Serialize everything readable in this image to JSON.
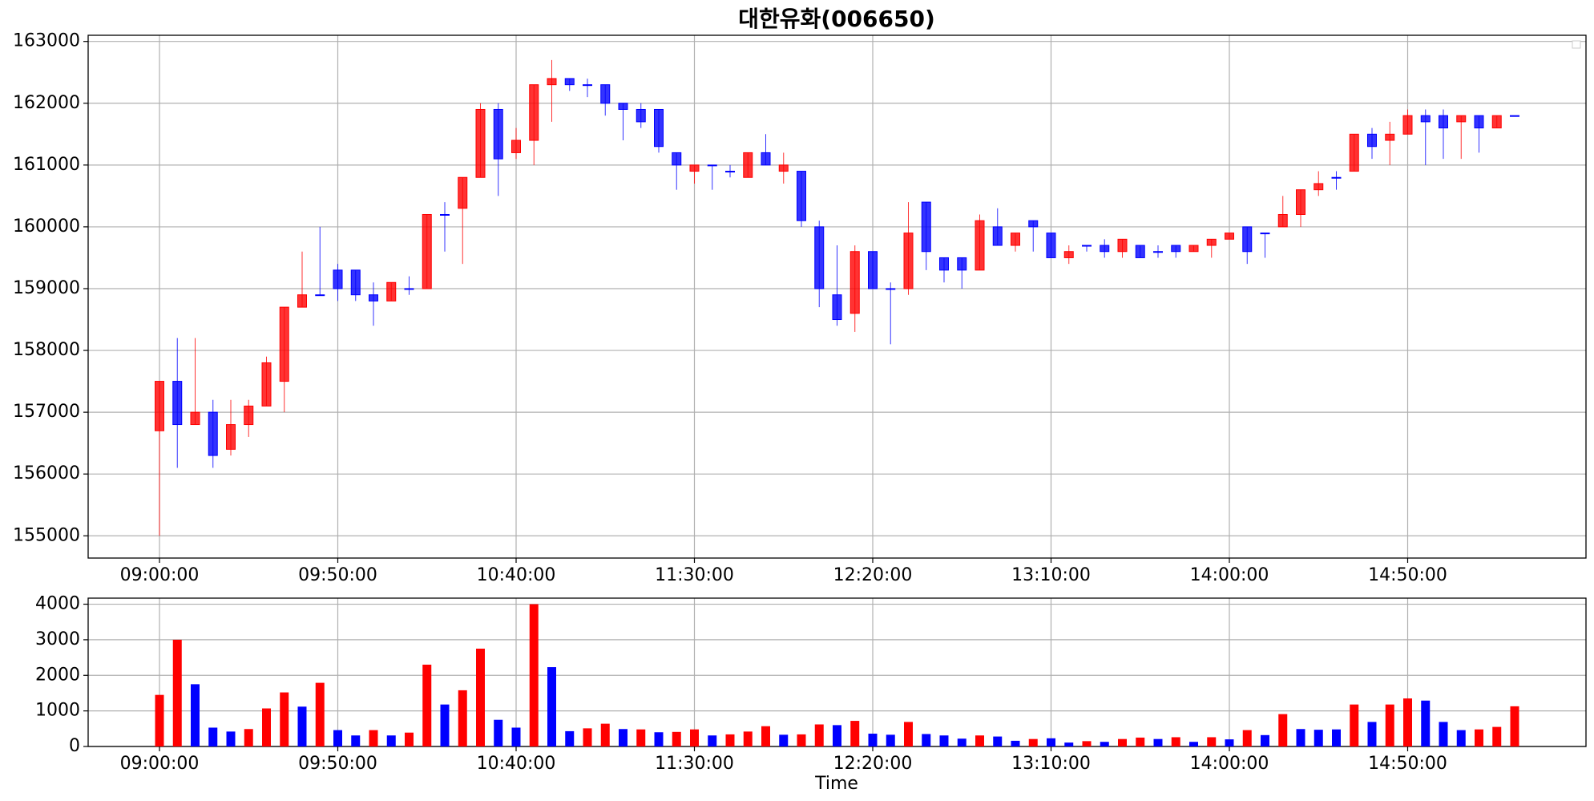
{
  "chart_data": [
    {
      "type": "candlestick",
      "title": "대한유화(006650)",
      "x": [
        "09:00:00",
        "09:05:00",
        "09:10:00",
        "09:15:00",
        "09:20:00",
        "09:25:00",
        "09:30:00",
        "09:35:00",
        "09:40:00",
        "09:45:00",
        "09:50:00",
        "09:55:00",
        "10:00:00",
        "10:05:00",
        "10:10:00",
        "10:15:00",
        "10:20:00",
        "10:25:00",
        "10:30:00",
        "10:35:00",
        "10:40:00",
        "10:45:00",
        "10:50:00",
        "10:55:00",
        "11:00:00",
        "11:05:00",
        "11:10:00",
        "11:15:00",
        "11:20:00",
        "11:25:00",
        "11:30:00",
        "11:35:00",
        "11:40:00",
        "11:45:00",
        "11:50:00",
        "11:55:00",
        "12:00:00",
        "12:05:00",
        "12:10:00",
        "12:15:00",
        "12:20:00",
        "12:25:00",
        "12:30:00",
        "12:35:00",
        "12:40:00",
        "12:45:00",
        "12:50:00",
        "12:55:00",
        "13:00:00",
        "13:05:00",
        "13:10:00",
        "13:15:00",
        "13:20:00",
        "13:25:00",
        "13:30:00",
        "13:35:00",
        "13:40:00",
        "13:45:00",
        "13:50:00",
        "13:55:00",
        "14:00:00",
        "14:05:00",
        "14:10:00",
        "14:15:00",
        "14:20:00",
        "14:25:00",
        "14:30:00",
        "14:35:00",
        "14:40:00",
        "14:45:00",
        "14:50:00",
        "14:55:00",
        "15:00:00",
        "15:05:00",
        "15:10:00",
        "15:15:00",
        "15:20:00"
      ],
      "open": [
        156700,
        157500,
        156800,
        157000,
        156400,
        156800,
        157100,
        157500,
        158700,
        158900,
        159300,
        159300,
        158900,
        158800,
        159000,
        159000,
        160200,
        160300,
        160800,
        161900,
        161200,
        161400,
        162300,
        162400,
        162300,
        162300,
        162000,
        161900,
        161900,
        161200,
        160900,
        161000,
        160900,
        160800,
        161200,
        160900,
        160900,
        160000,
        158900,
        158600,
        159600,
        159000,
        159000,
        160400,
        159500,
        159500,
        159300,
        160000,
        159700,
        160100,
        159900,
        159500,
        159700,
        159700,
        159600,
        159700,
        159600,
        159700,
        159600,
        159700,
        159800,
        160000,
        159900,
        160000,
        160200,
        160600,
        160800,
        160900,
        161500,
        161400,
        161500,
        161800,
        161800,
        161700,
        161800,
        161600,
        161800
      ],
      "high": [
        157500,
        158200,
        158200,
        157200,
        157200,
        157200,
        157900,
        158700,
        159600,
        160000,
        159400,
        159300,
        159100,
        159100,
        159200,
        160200,
        160400,
        160800,
        162000,
        162000,
        161600,
        162300,
        162700,
        162400,
        162400,
        162300,
        162000,
        162000,
        161900,
        161200,
        161000,
        161000,
        161000,
        161200,
        161500,
        161200,
        160900,
        160100,
        159700,
        159700,
        159600,
        159100,
        160400,
        160400,
        159500,
        159500,
        160200,
        160300,
        159900,
        160100,
        159900,
        159700,
        159700,
        159800,
        159800,
        159700,
        159700,
        159700,
        159700,
        159800,
        159900,
        160000,
        159900,
        160500,
        160600,
        160900,
        160900,
        161500,
        161600,
        161700,
        161900,
        161900,
        161900,
        161800,
        161800,
        161800,
        161800
      ],
      "low": [
        155000,
        156100,
        156800,
        156100,
        156300,
        156600,
        157100,
        157000,
        158700,
        158900,
        158800,
        158800,
        158400,
        158800,
        158900,
        159000,
        159600,
        159400,
        160800,
        160500,
        161100,
        161000,
        161700,
        162200,
        162100,
        161800,
        161400,
        161600,
        161200,
        160600,
        160700,
        160600,
        160800,
        160800,
        161000,
        160700,
        160000,
        158700,
        158400,
        158300,
        159000,
        158100,
        158900,
        159300,
        159100,
        159000,
        159300,
        159700,
        159600,
        159600,
        159500,
        159400,
        159600,
        159500,
        159500,
        159500,
        159500,
        159500,
        159600,
        159500,
        159800,
        159400,
        159500,
        160000,
        160000,
        160500,
        160600,
        160900,
        161100,
        161000,
        161500,
        161000,
        161100,
        161100,
        161200,
        161600,
        161800
      ],
      "close": [
        157500,
        156800,
        157000,
        156300,
        156800,
        157100,
        157800,
        158700,
        158900,
        158900,
        159000,
        158900,
        158800,
        159100,
        159000,
        160200,
        160200,
        160800,
        161900,
        161100,
        161400,
        162300,
        162400,
        162300,
        162300,
        162000,
        161900,
        161700,
        161300,
        161000,
        161000,
        161000,
        160900,
        161200,
        161000,
        161000,
        160100,
        159000,
        158500,
        159600,
        159000,
        159000,
        159900,
        159600,
        159300,
        159300,
        160100,
        159700,
        159900,
        160000,
        159500,
        159600,
        159700,
        159600,
        159800,
        159500,
        159600,
        159600,
        159700,
        159800,
        159900,
        159600,
        159900,
        160200,
        160600,
        160700,
        160800,
        161500,
        161300,
        161500,
        161800,
        161700,
        161600,
        161800,
        161600,
        161800,
        161800
      ],
      "up_color": "#ff0000",
      "down_color": "#0000ff",
      "xlim": [
        "08:40:00",
        "15:40:00"
      ],
      "xticks": [
        "09:00:00",
        "09:50:00",
        "10:40:00",
        "11:30:00",
        "12:20:00",
        "13:10:00",
        "14:00:00",
        "14:50:00"
      ],
      "ylim": [
        154640,
        163100
      ],
      "yticks": [
        155000,
        156000,
        157000,
        158000,
        159000,
        160000,
        161000,
        162000,
        163000
      ],
      "grid": true
    },
    {
      "type": "bar",
      "xlabel": "Time",
      "x": [
        "09:00:00",
        "09:05:00",
        "09:10:00",
        "09:15:00",
        "09:20:00",
        "09:25:00",
        "09:30:00",
        "09:35:00",
        "09:40:00",
        "09:45:00",
        "09:50:00",
        "09:55:00",
        "10:00:00",
        "10:05:00",
        "10:10:00",
        "10:15:00",
        "10:20:00",
        "10:25:00",
        "10:30:00",
        "10:35:00",
        "10:40:00",
        "10:45:00",
        "10:50:00",
        "10:55:00",
        "11:00:00",
        "11:05:00",
        "11:10:00",
        "11:15:00",
        "11:20:00",
        "11:25:00",
        "11:30:00",
        "11:35:00",
        "11:40:00",
        "11:45:00",
        "11:50:00",
        "11:55:00",
        "12:00:00",
        "12:05:00",
        "12:10:00",
        "12:15:00",
        "12:20:00",
        "12:25:00",
        "12:30:00",
        "12:35:00",
        "12:40:00",
        "12:45:00",
        "12:50:00",
        "12:55:00",
        "13:00:00",
        "13:05:00",
        "13:10:00",
        "13:15:00",
        "13:20:00",
        "13:25:00",
        "13:30:00",
        "13:35:00",
        "13:40:00",
        "13:45:00",
        "13:50:00",
        "13:55:00",
        "14:00:00",
        "14:05:00",
        "14:10:00",
        "14:15:00",
        "14:20:00",
        "14:25:00",
        "14:30:00",
        "14:35:00",
        "14:40:00",
        "14:45:00",
        "14:50:00",
        "14:55:00",
        "15:00:00",
        "15:05:00",
        "15:10:00",
        "15:15:00",
        "15:20:00"
      ],
      "values": [
        1450,
        3000,
        1750,
        530,
        420,
        490,
        1070,
        1520,
        1120,
        1790,
        460,
        310,
        460,
        310,
        390,
        2300,
        1180,
        1580,
        2750,
        750,
        530,
        4000,
        2230,
        430,
        510,
        640,
        490,
        480,
        400,
        410,
        480,
        310,
        340,
        420,
        570,
        330,
        340,
        620,
        600,
        720,
        360,
        330,
        690,
        350,
        310,
        220,
        310,
        280,
        160,
        210,
        230,
        110,
        150,
        130,
        210,
        250,
        210,
        260,
        130,
        260,
        200,
        460,
        320,
        910,
        490,
        470,
        480,
        1180,
        690,
        1180,
        1350,
        1290,
        690,
        460,
        480,
        550,
        1130
      ],
      "colors": [
        "#ff0000",
        "#ff0000",
        "#0000ff",
        "#0000ff",
        "#0000ff",
        "#ff0000",
        "#ff0000",
        "#ff0000",
        "#0000ff",
        "#ff0000",
        "#0000ff",
        "#0000ff",
        "#ff0000",
        "#0000ff",
        "#ff0000",
        "#ff0000",
        "#0000ff",
        "#ff0000",
        "#ff0000",
        "#0000ff",
        "#0000ff",
        "#ff0000",
        "#0000ff",
        "#0000ff",
        "#ff0000",
        "#ff0000",
        "#0000ff",
        "#ff0000",
        "#0000ff",
        "#ff0000",
        "#ff0000",
        "#0000ff",
        "#ff0000",
        "#ff0000",
        "#ff0000",
        "#0000ff",
        "#ff0000",
        "#ff0000",
        "#0000ff",
        "#ff0000",
        "#0000ff",
        "#0000ff",
        "#ff0000",
        "#0000ff",
        "#0000ff",
        "#0000ff",
        "#ff0000",
        "#0000ff",
        "#0000ff",
        "#ff0000",
        "#0000ff",
        "#0000ff",
        "#ff0000",
        "#0000ff",
        "#ff0000",
        "#ff0000",
        "#0000ff",
        "#ff0000",
        "#0000ff",
        "#ff0000",
        "#0000ff",
        "#ff0000",
        "#0000ff",
        "#ff0000",
        "#0000ff",
        "#0000ff",
        "#0000ff",
        "#ff0000",
        "#0000ff",
        "#ff0000",
        "#ff0000",
        "#0000ff",
        "#0000ff",
        "#0000ff",
        "#ff0000",
        "#ff0000",
        "#ff0000"
      ],
      "xlim": [
        "08:40:00",
        "15:40:00"
      ],
      "xticks": [
        "09:00:00",
        "09:50:00",
        "10:40:00",
        "11:30:00",
        "12:20:00",
        "13:10:00",
        "14:00:00",
        "14:50:00"
      ],
      "ylim": [
        0,
        4170
      ],
      "yticks": [
        0,
        1000,
        2000,
        3000,
        4000
      ],
      "grid": true
    }
  ]
}
